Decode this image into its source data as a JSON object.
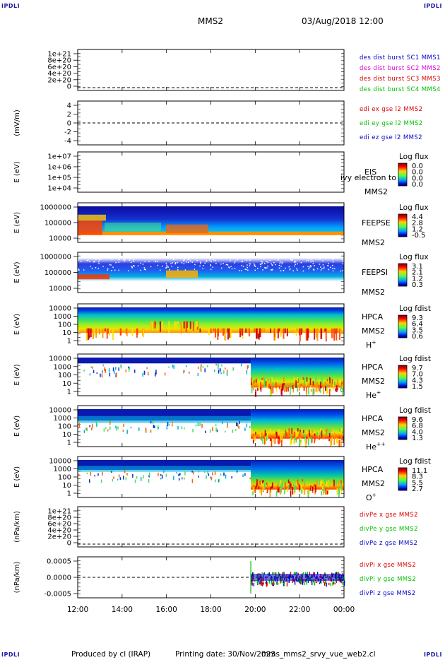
{
  "corners": {
    "tl": "IPDLI",
    "tr": "IPDLI",
    "bl": "IPDLI",
    "br": "IPDLI"
  },
  "header": {
    "spacecraft": "MMS2",
    "datetime": "03/Aug/2018 12:00"
  },
  "footer": {
    "produced": "Produced by cl (IRAP)",
    "printing": "Printing date: 30/Nov/2023",
    "file": "mms_mms2_srvy_vue_web2.cl"
  },
  "colors": {
    "red": "#dd0000",
    "green": "#00c000",
    "blue": "#0000cc",
    "magenta": "#dd00dd"
  },
  "xaxis": {
    "ticks": [
      "12:00",
      "14:00",
      "16:00",
      "18:00",
      "20:00",
      "22:00",
      "00:00"
    ]
  },
  "chart_data": [
    {
      "id": "des-dist",
      "type": "line",
      "ylabel": "",
      "yticks": [
        "1e+21",
        "8e+20",
        "6e+20",
        "4e+20",
        "2e+20",
        "0"
      ],
      "legend": [
        {
          "text": "des dist burst SC1 MMS1",
          "color": "blue"
        },
        {
          "text": "des dist burst SC2 MMS2",
          "color": "magenta"
        },
        {
          "text": "des dist burst SC3 MMS3",
          "color": "red"
        },
        {
          "text": "des dist burst SC4 MMS4",
          "color": "green"
        }
      ]
    },
    {
      "id": "edi-e",
      "type": "line",
      "ylabel": "(mV/m)",
      "yticks": [
        "4",
        "2",
        "0",
        "-2",
        "-4"
      ],
      "legend": [
        {
          "text": "edi ex gse l2 MMS2",
          "color": "red"
        },
        {
          "text": "edi ey gse l2 MMS2",
          "color": "green"
        },
        {
          "text": "edi ez gse l2 MMS2",
          "color": "blue"
        }
      ]
    },
    {
      "id": "eis",
      "type": "heatmap",
      "ylabel": "E (eV)",
      "yticks": [
        "1e+07",
        "1e+06",
        "1e+05",
        "1e+04"
      ],
      "instrument": [
        "EIS",
        "MMS2"
      ],
      "overlay": "ivy electron to",
      "cbar": {
        "title": "Log flux",
        "ticks": [
          "0.0",
          "0.0",
          "0.0",
          "0.0"
        ]
      }
    },
    {
      "id": "feepse",
      "type": "heatmap",
      "ylabel": "E (eV)",
      "yticks": [
        "1000000",
        "100000",
        "10000"
      ],
      "instrument": [
        "FEEPSE",
        "MMS2"
      ],
      "cbar": {
        "title": "Log flux",
        "ticks": [
          "4.4",
          "2.8",
          "1.2",
          "-0.5"
        ]
      }
    },
    {
      "id": "feepsi",
      "type": "heatmap",
      "ylabel": "E (eV)",
      "yticks": [
        "1000000",
        "100000",
        "10000"
      ],
      "instrument": [
        "FEEPSI",
        "MMS2"
      ],
      "cbar": {
        "title": "Log flux",
        "ticks": [
          "3.1",
          "2.1",
          "1.2",
          "0.3"
        ]
      }
    },
    {
      "id": "hpca-h",
      "type": "heatmap",
      "ylabel": "E (eV)",
      "yticks": [
        "10000",
        "1000",
        "100",
        "10",
        "1"
      ],
      "instrument": [
        "HPCA",
        "MMS2"
      ],
      "species": {
        "base": "H",
        "sup": "+"
      },
      "cbar": {
        "title": "Log fdist",
        "ticks": [
          "9.3",
          "6.4",
          "3.5",
          "0.6"
        ]
      }
    },
    {
      "id": "hpca-he",
      "type": "heatmap",
      "ylabel": "E (eV)",
      "yticks": [
        "10000",
        "1000",
        "100",
        "10",
        "1"
      ],
      "instrument": [
        "HPCA",
        "MMS2"
      ],
      "species": {
        "base": "He",
        "sup": "+"
      },
      "cbar": {
        "title": "Log fdist",
        "ticks": [
          "9.7",
          "7.0",
          "4.3",
          "1.5"
        ]
      }
    },
    {
      "id": "hpca-he2",
      "type": "heatmap",
      "ylabel": "E (eV)",
      "yticks": [
        "10000",
        "1000",
        "100",
        "10",
        "1"
      ],
      "instrument": [
        "HPCA",
        "MMS2"
      ],
      "species": {
        "base": "He",
        "sup": "++"
      },
      "cbar": {
        "title": "Log fdist",
        "ticks": [
          "9.6",
          "6.8",
          "4.0",
          "1.3"
        ]
      }
    },
    {
      "id": "hpca-o",
      "type": "heatmap",
      "ylabel": "E (eV)",
      "yticks": [
        "10000",
        "1000",
        "100",
        "10",
        "1"
      ],
      "instrument": [
        "HPCA",
        "MMS2"
      ],
      "species": {
        "base": "O",
        "sup": "+"
      },
      "cbar": {
        "title": "Log fdist",
        "ticks": [
          "11.1",
          "8.3",
          "5.5",
          "2.7"
        ]
      }
    },
    {
      "id": "divpe",
      "type": "line",
      "ylabel": "(nPa/km)",
      "yticks": [
        "1e+21",
        "8e+20",
        "6e+20",
        "4e+20",
        "2e+20",
        "0"
      ],
      "legend": [
        {
          "text": "divPe x gse MMS2",
          "color": "red"
        },
        {
          "text": "divPe y gse MMS2",
          "color": "green"
        },
        {
          "text": "divPe z gse MMS2",
          "color": "blue"
        }
      ]
    },
    {
      "id": "divpi",
      "type": "line",
      "ylabel": "(nPa/km)",
      "yticks": [
        "0.0005",
        "0.0000",
        "-0.0005"
      ],
      "legend": [
        {
          "text": "divPi x gse MMS2",
          "color": "red"
        },
        {
          "text": "divPi y gse MMS2",
          "color": "green"
        },
        {
          "text": "divPi z gse MMS2",
          "color": "blue"
        }
      ]
    }
  ]
}
